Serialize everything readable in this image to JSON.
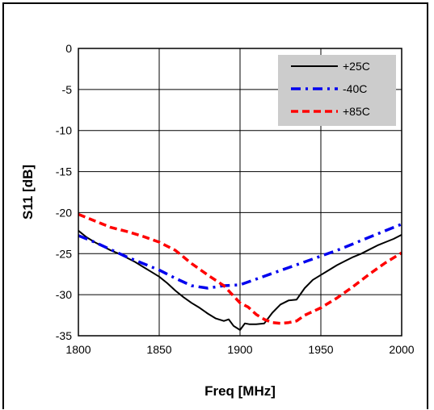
{
  "chart_data": {
    "type": "line",
    "title": "",
    "xlabel": "Freq [MHz]",
    "ylabel": "S11 [dB]",
    "xlim": [
      1800,
      2000
    ],
    "ylim": [
      -35,
      0
    ],
    "xticks": [
      1800,
      1850,
      1900,
      1950,
      2000
    ],
    "yticks": [
      0,
      -5,
      -10,
      -15,
      -20,
      -25,
      -30,
      -35
    ],
    "grid": true,
    "legend_position": "top-right",
    "series": [
      {
        "name": "+25C",
        "color": "#000000",
        "style": "solid",
        "x": [
          1800,
          1805,
          1810,
          1815,
          1820,
          1825,
          1830,
          1835,
          1840,
          1845,
          1850,
          1855,
          1860,
          1865,
          1870,
          1875,
          1880,
          1885,
          1890,
          1893,
          1896,
          1900,
          1903,
          1906,
          1910,
          1915,
          1920,
          1925,
          1930,
          1935,
          1940,
          1945,
          1950,
          1955,
          1960,
          1965,
          1970,
          1975,
          1980,
          1985,
          1990,
          1995,
          2000
        ],
        "y": [
          -22.2,
          -23.0,
          -23.6,
          -24.1,
          -24.6,
          -25.0,
          -25.5,
          -26.0,
          -26.6,
          -27.2,
          -27.8,
          -28.6,
          -29.5,
          -30.3,
          -31.0,
          -31.6,
          -32.3,
          -32.9,
          -33.2,
          -33.0,
          -33.8,
          -34.3,
          -33.5,
          -33.6,
          -33.6,
          -33.5,
          -32.2,
          -31.2,
          -30.7,
          -30.6,
          -29.2,
          -28.2,
          -27.6,
          -27.0,
          -26.4,
          -25.9,
          -25.4,
          -25.0,
          -24.5,
          -24.0,
          -23.6,
          -23.2,
          -22.7
        ]
      },
      {
        "name": "-40C",
        "color": "#0000ee",
        "style": "dashdot",
        "x": [
          1800,
          1810,
          1820,
          1830,
          1840,
          1850,
          1860,
          1870,
          1880,
          1890,
          1900,
          1910,
          1920,
          1930,
          1940,
          1950,
          1960,
          1970,
          1980,
          1990,
          2000
        ],
        "y": [
          -22.8,
          -23.6,
          -24.5,
          -25.4,
          -26.2,
          -27.0,
          -28.0,
          -28.9,
          -29.2,
          -28.9,
          -28.8,
          -28.1,
          -27.4,
          -26.7,
          -26.0,
          -25.3,
          -24.6,
          -23.8,
          -23.0,
          -22.2,
          -21.4
        ]
      },
      {
        "name": "+85C",
        "color": "#ff0000",
        "style": "dashed",
        "x": [
          1800,
          1810,
          1820,
          1830,
          1840,
          1850,
          1860,
          1870,
          1880,
          1890,
          1900,
          1905,
          1910,
          1915,
          1920,
          1925,
          1930,
          1935,
          1940,
          1950,
          1960,
          1970,
          1980,
          1990,
          2000
        ],
        "y": [
          -20.2,
          -21.0,
          -21.8,
          -22.3,
          -22.9,
          -23.6,
          -24.6,
          -26.2,
          -27.6,
          -28.9,
          -31.0,
          -31.5,
          -32.4,
          -33.0,
          -33.4,
          -33.5,
          -33.4,
          -33.2,
          -32.5,
          -31.6,
          -30.4,
          -29.0,
          -27.5,
          -26.1,
          -24.9
        ]
      }
    ]
  }
}
